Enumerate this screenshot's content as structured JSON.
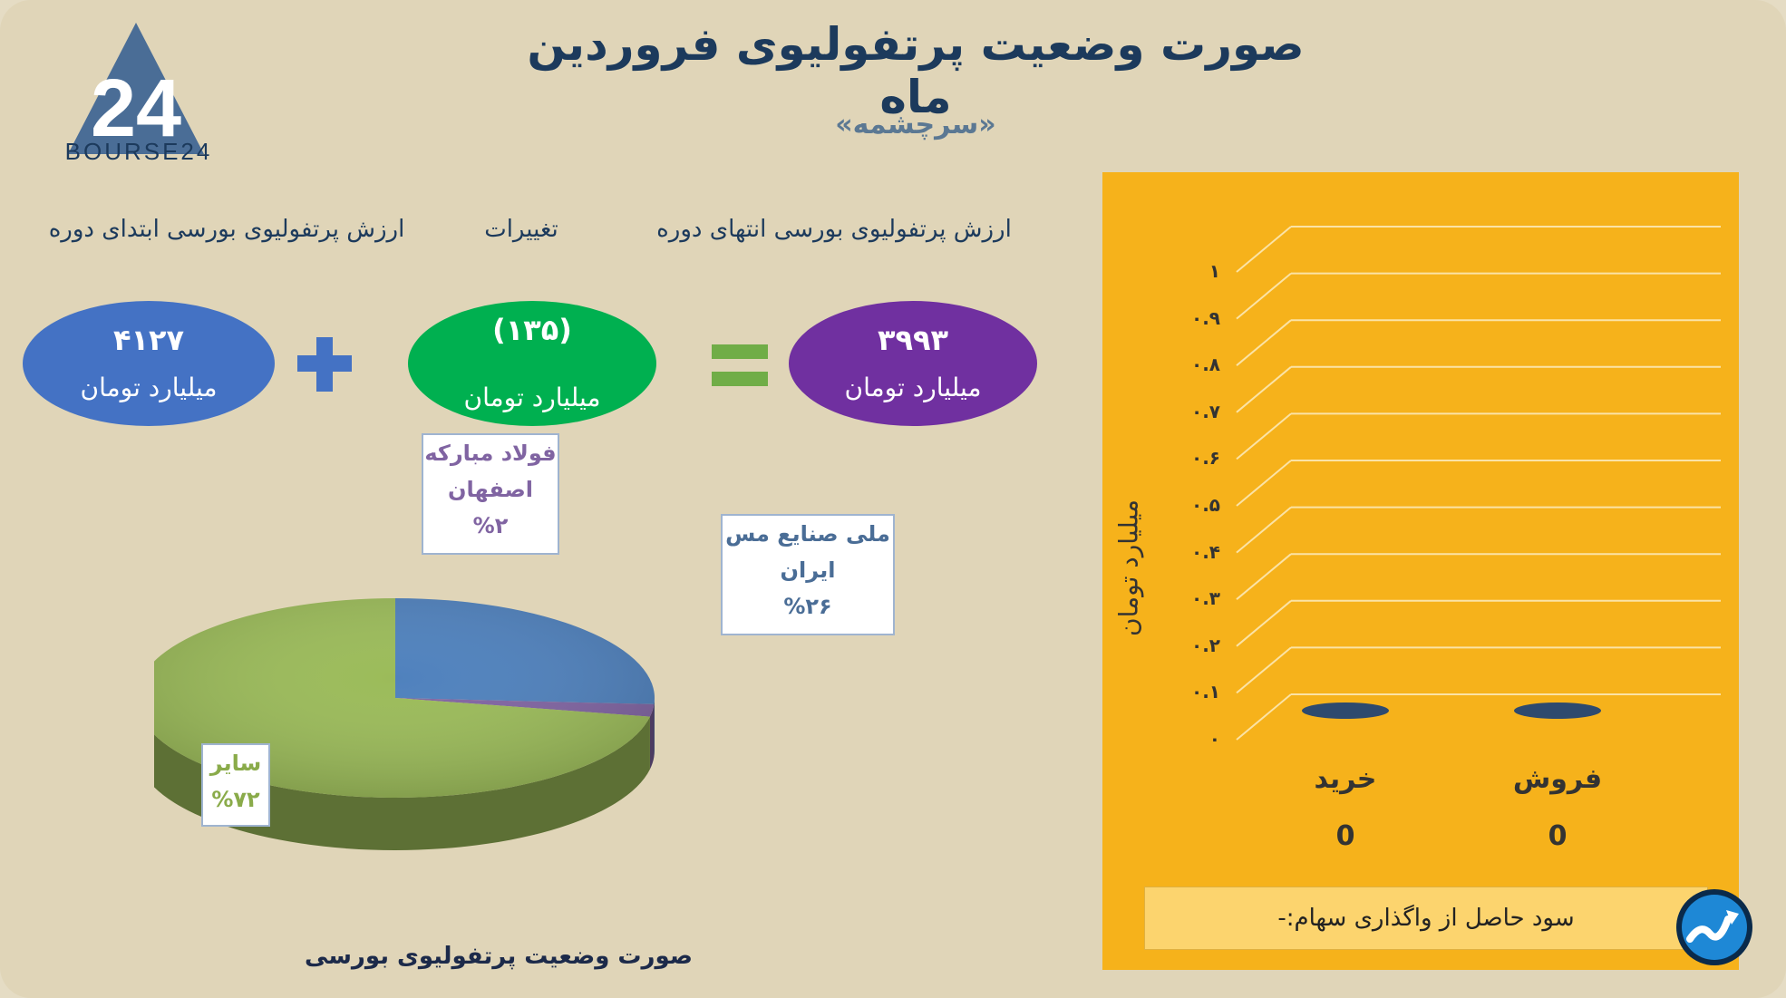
{
  "header": {
    "title": "صورت وضعیت پرتفولیوی فروردین ماه",
    "subtitle": "«سرچشمه»"
  },
  "logo": {
    "mark": "24",
    "text": "BOURSE24",
    "color": "#4a6d96"
  },
  "summary": {
    "start_label": "ارزش پرتفولیوی بورسی ابتدای دوره",
    "change_label": "تغییرات",
    "end_label": "ارزش پرتفولیوی بورسی انتهای دوره",
    "start_value": "۴۱۲۷",
    "change_value": "(۱۳۵)",
    "end_value": "۳۹۹۳",
    "unit": "میلیارد تومان",
    "colors": {
      "start": "#4472c4",
      "change": "#00b050",
      "end": "#7030a0"
    }
  },
  "pie_caption": "صورت وضعیت پرتفولیوی بورسی",
  "callouts": {
    "copper_line1": "ملی صنایع مس",
    "copper_line2": "ایران",
    "copper_pct": "%۲۶",
    "steel_line1": "فولاد مبارکه",
    "steel_line2": "اصفهان",
    "steel_pct": "%۲",
    "other_line1": "سایر",
    "other_pct": "%۷۲"
  },
  "bar_panel": {
    "ylabel": "میلیارد تومان",
    "ticks": [
      "۰",
      "۰.۱",
      "۰.۲",
      "۰.۳",
      "۰.۴",
      "۰.۵",
      "۰.۶",
      "۰.۷",
      "۰.۸",
      "۰.۹",
      "۱"
    ],
    "profit_label": "سود حاصل از واگذاری سهام:-",
    "background": "#f6b21b"
  },
  "chart_data": [
    {
      "type": "pie",
      "title": "صورت وضعیت پرتفولیوی بورسی",
      "slices": [
        {
          "label": "ملی صنایع مس ایران",
          "value": 26,
          "color": "#4f81bd"
        },
        {
          "label": "فولاد مبارکه اصفهان",
          "value": 2,
          "color": "#8064a2"
        },
        {
          "label": "سایر",
          "value": 72,
          "color": "#9bbb59"
        }
      ]
    },
    {
      "type": "bar",
      "categories": [
        "خرید",
        "فروش"
      ],
      "values": [
        0,
        0
      ],
      "value_labels": [
        "0",
        "0"
      ],
      "ylabel": "میلیارد تومان",
      "ylim": [
        0,
        1
      ],
      "grid": true,
      "bar_color": "#2e4a6e"
    }
  ]
}
